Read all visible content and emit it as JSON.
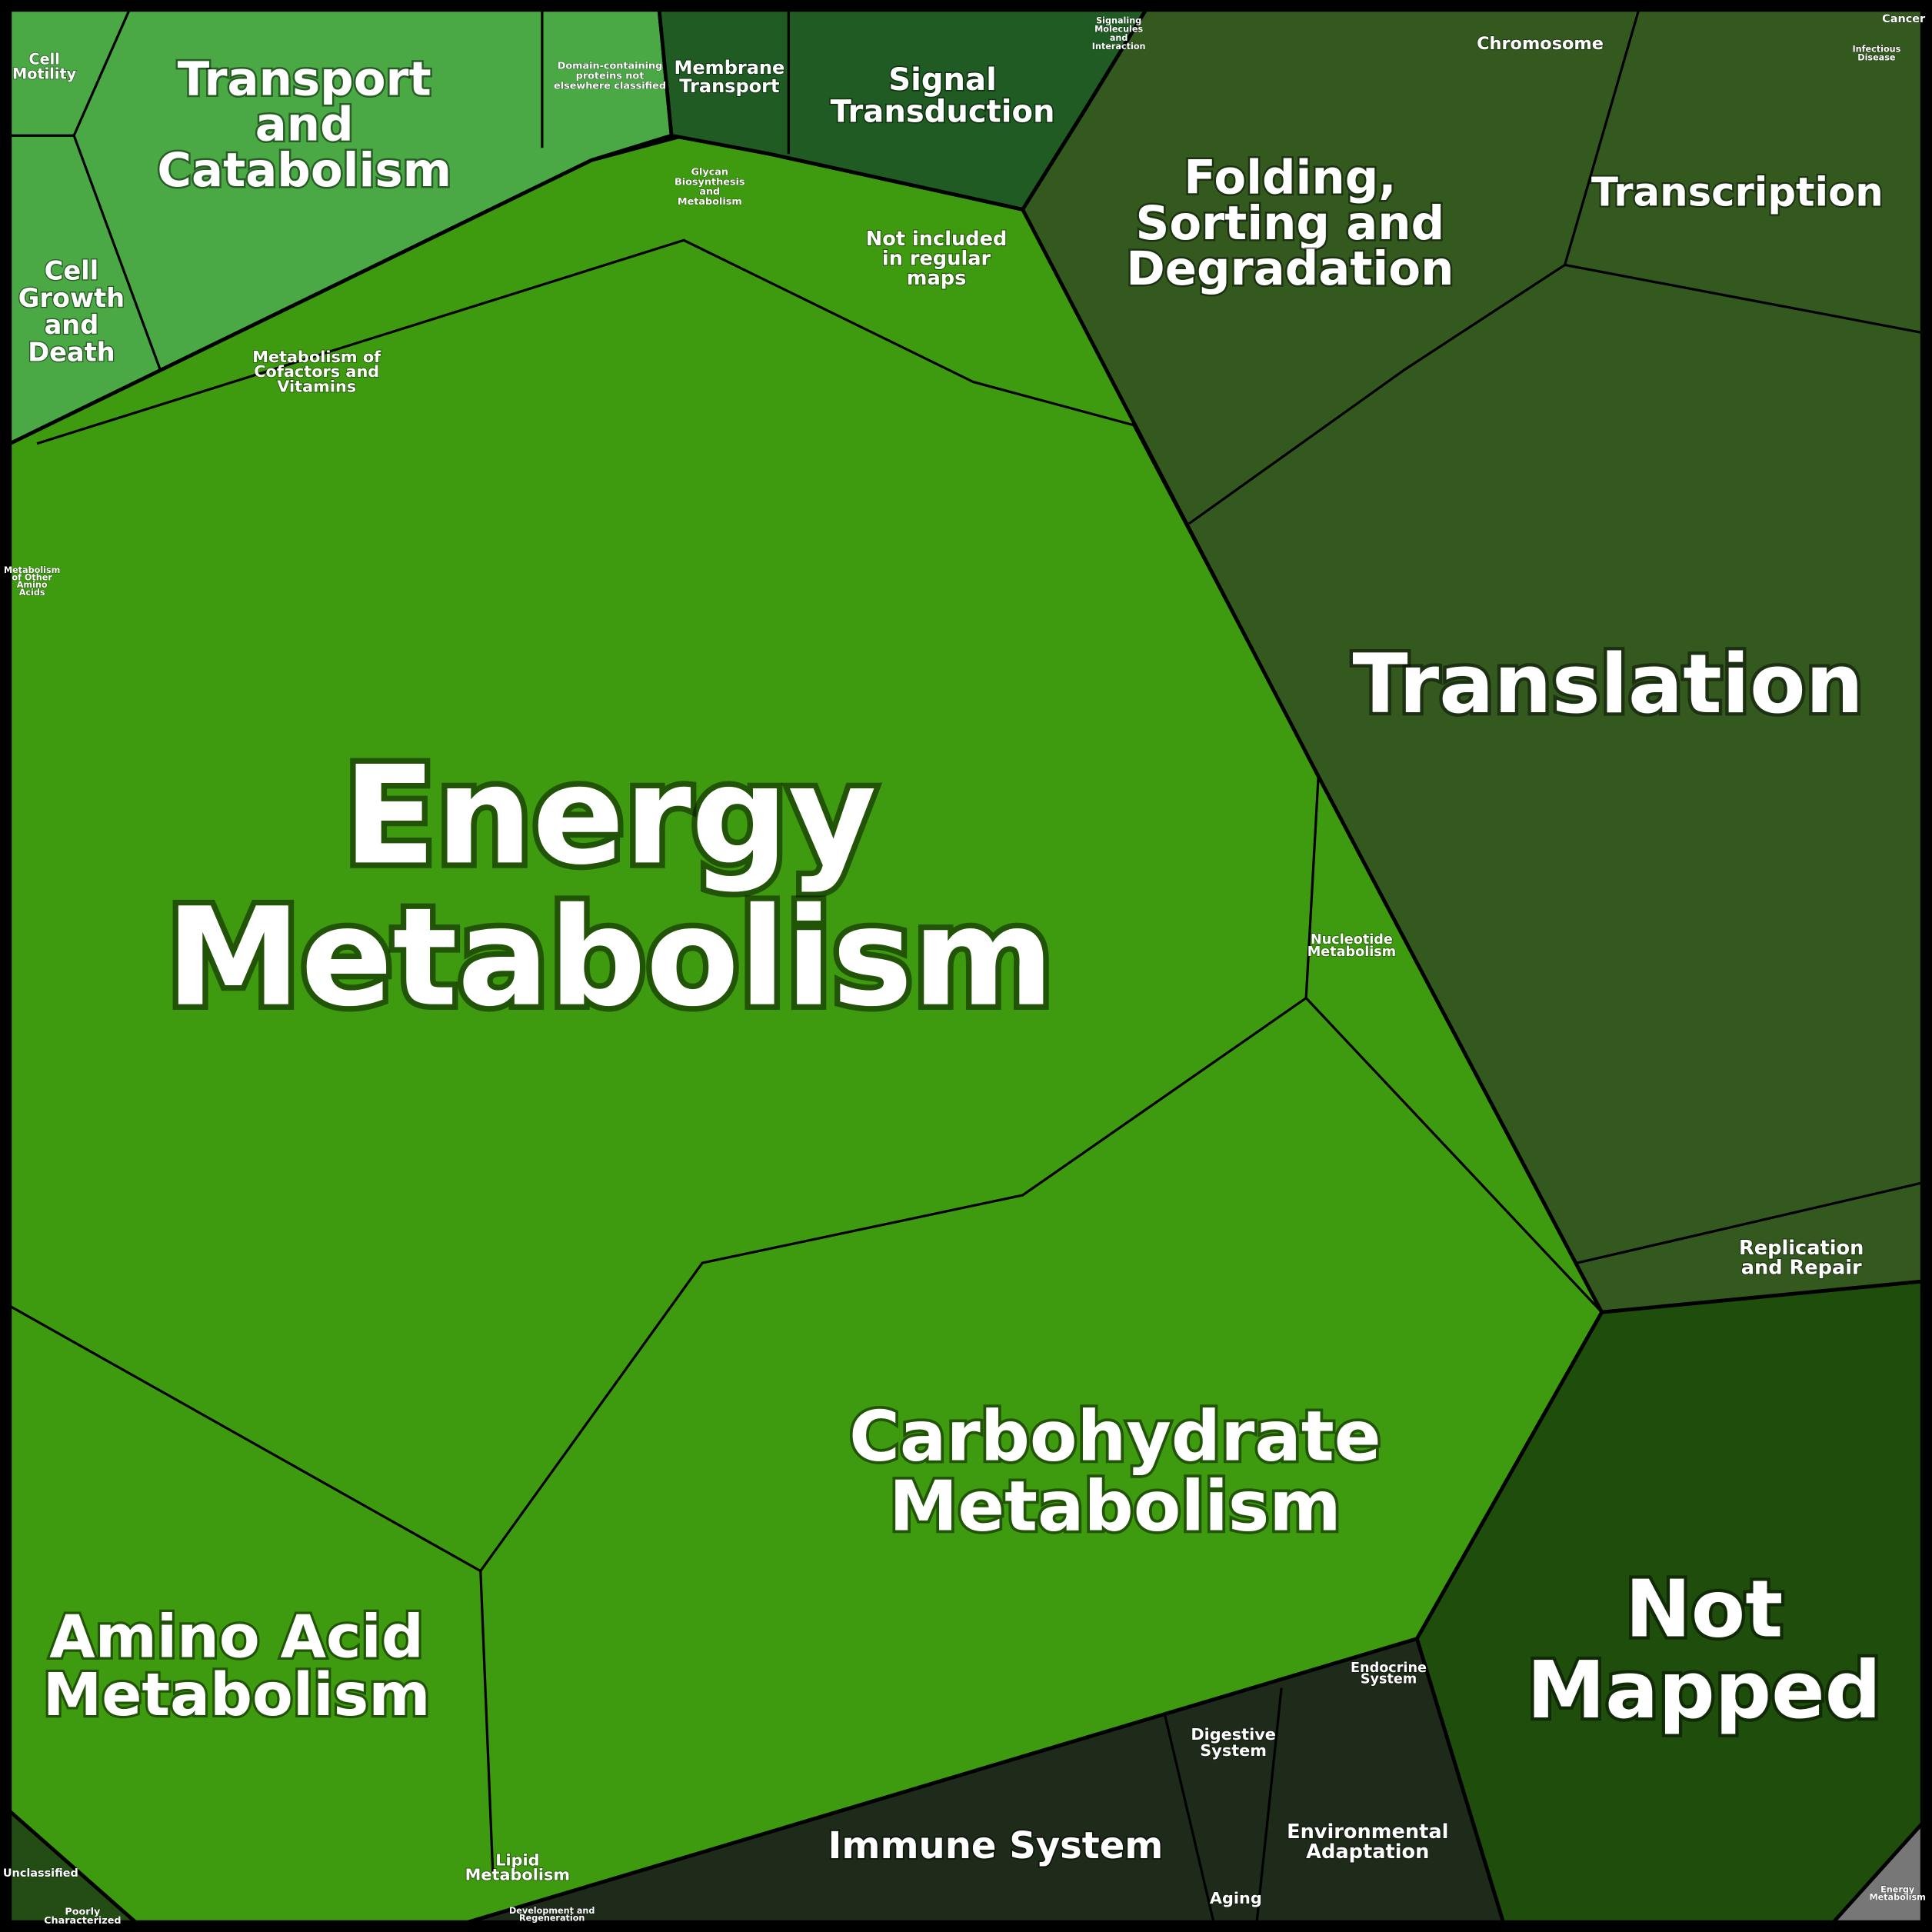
{
  "chart_data": {
    "type": "voronoi-treemap",
    "regions": [
      {
        "lines": [
          "Energy",
          "Metabolism"
        ]
      },
      {
        "lines": [
          "Carbohydrate",
          "Metabolism"
        ]
      },
      {
        "lines": [
          "Amino Acid",
          "Metabolism"
        ]
      },
      {
        "lines": [
          "Translation"
        ]
      },
      {
        "lines": [
          "Not",
          "Mapped"
        ]
      },
      {
        "lines": [
          "Folding,",
          "Sorting and",
          "Degradation"
        ]
      },
      {
        "lines": [
          "Transcription"
        ]
      },
      {
        "lines": [
          "Transport",
          "and",
          "Catabolism"
        ]
      },
      {
        "lines": [
          "Signal",
          "Transduction"
        ]
      },
      {
        "lines": [
          "Membrane",
          "Transport"
        ]
      },
      {
        "lines": [
          "Cell",
          "Growth",
          "and",
          "Death"
        ]
      },
      {
        "lines": [
          "Cell",
          "Motility"
        ]
      },
      {
        "lines": [
          "Chromosome"
        ]
      },
      {
        "lines": [
          "Not included",
          "in regular",
          "maps"
        ]
      },
      {
        "lines": [
          "Metabolism of",
          "Cofactors and",
          "Vitamins"
        ]
      },
      {
        "lines": [
          "Nucleotide",
          "Metabolism"
        ]
      },
      {
        "lines": [
          "Replication",
          "and Repair"
        ]
      },
      {
        "lines": [
          "Immune System"
        ]
      },
      {
        "lines": [
          "Environmental",
          "Adaptation"
        ]
      },
      {
        "lines": [
          "Digestive",
          "System"
        ]
      },
      {
        "lines": [
          "Endocrine",
          "System"
        ]
      },
      {
        "lines": [
          "Aging"
        ]
      },
      {
        "lines": [
          "Lipid",
          "Metabolism"
        ]
      },
      {
        "lines": [
          "Unclassified"
        ]
      },
      {
        "lines": [
          "Poorly",
          "Characterized"
        ]
      },
      {
        "lines": [
          "Glycan",
          "Biosynthesis",
          "and",
          "Metabolism"
        ]
      },
      {
        "lines": [
          "Domain-containing",
          "proteins not",
          "elsewhere classified"
        ]
      },
      {
        "lines": [
          "Signaling",
          "Molecules",
          "and",
          "Interaction"
        ]
      },
      {
        "lines": [
          "Cancer"
        ]
      },
      {
        "lines": [
          "Infectious",
          "Disease"
        ]
      },
      {
        "lines": [
          "Metabolism",
          "of Other",
          "Amino",
          "Acids"
        ]
      },
      {
        "lines": [
          "Development and",
          "Regeneration"
        ]
      },
      {
        "lines": [
          "Energy",
          "Metabolism"
        ]
      }
    ]
  }
}
